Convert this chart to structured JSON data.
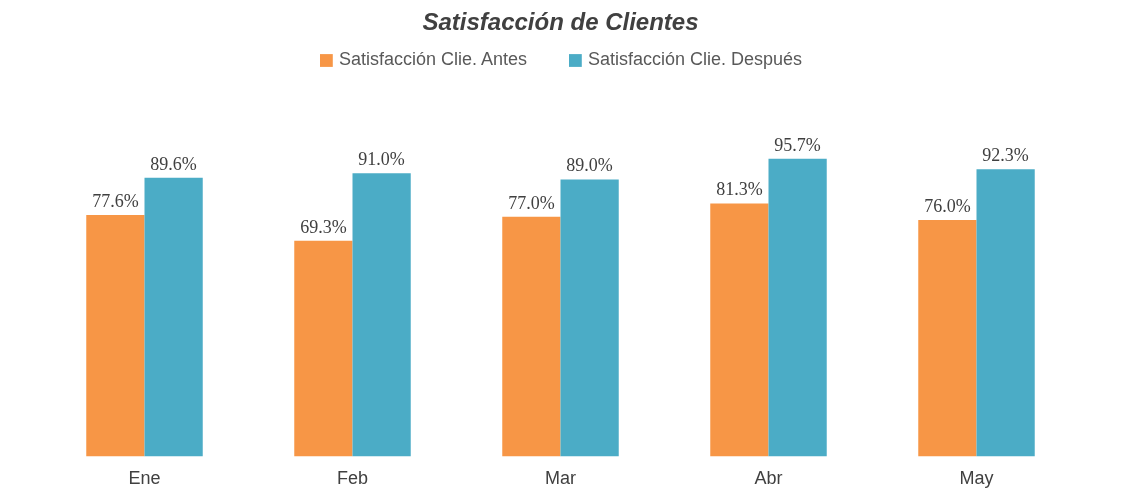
{
  "chart_data": {
    "type": "bar",
    "title": "Satisfacción de Clientes",
    "categories": [
      "Ene",
      "Feb",
      "Mar",
      "Abr",
      "May"
    ],
    "series": [
      {
        "name": "Satisfacción Clie. Antes",
        "color": "#f79646",
        "values": [
          77.6,
          69.3,
          77.0,
          81.3,
          76.0
        ],
        "value_labels": [
          "77.6%",
          "69.3%",
          "77.0%",
          "81.3%",
          "76.0%"
        ]
      },
      {
        "name": "Satisfacción Clie. Después",
        "color": "#4bacc6",
        "values": [
          89.6,
          91.0,
          89.0,
          95.7,
          92.3
        ],
        "value_labels": [
          "89.6%",
          "91.0%",
          "89.0%",
          "95.7%",
          "92.3%"
        ]
      }
    ],
    "legend": "top"
  }
}
